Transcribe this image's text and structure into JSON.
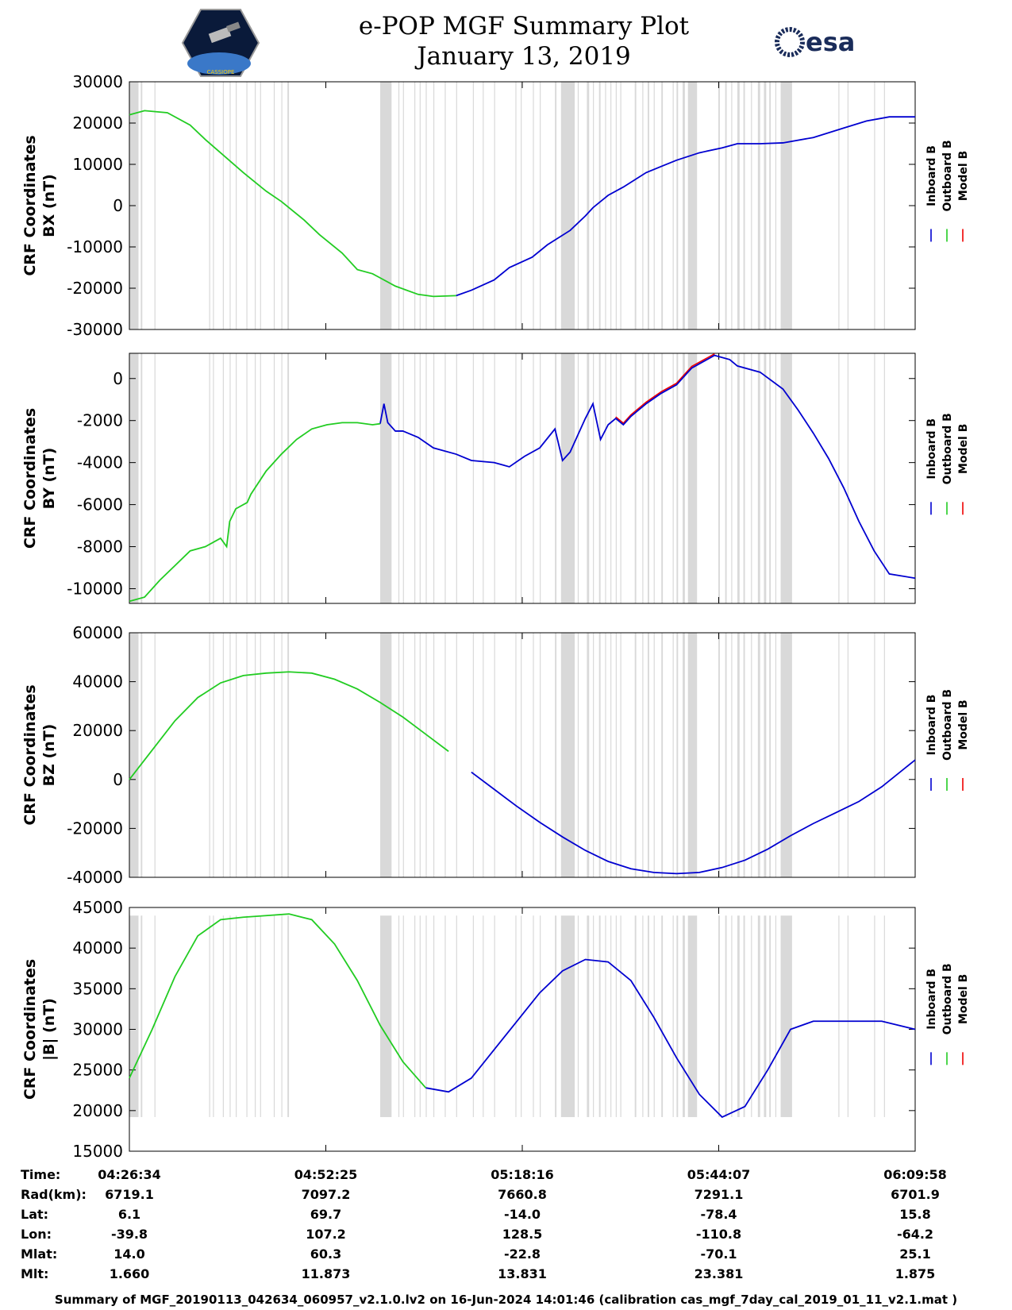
{
  "header": {
    "title": "e-POP MGF Summary Plot",
    "date": "January 13, 2019",
    "logo_left": "cassiope-mission-logo",
    "logo_left_text": "CASSIOPE",
    "logo_right": "esa-logo",
    "logo_right_text": "esa"
  },
  "colors": {
    "inboard": "#0000d0",
    "outboard": "#22cc22",
    "model": "#ee0000",
    "gap": "#d9d9d9"
  },
  "legend": [
    "Inboard B",
    "Outboard B",
    "Model B"
  ],
  "chart_data": [
    {
      "type": "line",
      "name": "bx",
      "ylabel_line1": "CRF Coordinates",
      "ylabel_line2": "BX (nT)",
      "ylim": [
        -30000,
        30000
      ],
      "yticks": [
        -30000,
        -20000,
        -10000,
        0,
        10000,
        20000,
        30000
      ],
      "ytick_labels": [
        "-30000",
        "-20000",
        "-10000",
        "0",
        "10000",
        "20000",
        "30000"
      ],
      "x_minutes": [
        0,
        2,
        5,
        8,
        10,
        12,
        15,
        18,
        20,
        23,
        25,
        28,
        30,
        32,
        33,
        35,
        38,
        40,
        43,
        45,
        48,
        50,
        53,
        55,
        58,
        60,
        61,
        63,
        65,
        68,
        70,
        72,
        75,
        78,
        80,
        83,
        86,
        90,
        94,
        97,
        100,
        103.4
      ],
      "values": [
        22000,
        23000,
        22500,
        19500,
        16000,
        12800,
        8000,
        3500,
        1000,
        -3500,
        -7000,
        -11500,
        -15500,
        -16500,
        -17500,
        -19500,
        -21500,
        -22000,
        -21800,
        -20500,
        -18000,
        -15000,
        -12500,
        -9500,
        -6000,
        -2500,
        -500,
        2500,
        4500,
        8000,
        9500,
        11000,
        12800,
        14000,
        15000,
        15000,
        15200,
        16500,
        18800,
        20500,
        21500,
        21500
      ],
      "outboard_until_minute": 43
    },
    {
      "type": "line",
      "name": "by",
      "ylabel_line1": "CRF Coordinates",
      "ylabel_line2": "BY (nT)",
      "ylim": [
        -10700,
        1200
      ],
      "yticks": [
        -10000,
        -8000,
        -6000,
        -4000,
        -2000,
        0
      ],
      "ytick_labels": [
        "-10000",
        "-8000",
        "-6000",
        "-4000",
        "-2000",
        "0"
      ],
      "x_minutes": [
        0,
        2,
        4,
        6,
        8,
        10,
        12,
        12.8,
        13.2,
        14,
        15.5,
        16,
        18,
        20,
        22,
        24,
        26,
        28,
        30,
        32,
        33,
        33.5,
        34,
        35,
        36,
        38,
        40,
        43,
        45,
        48,
        50,
        52,
        54,
        56,
        57,
        58,
        60,
        61,
        62,
        63,
        64,
        65,
        66,
        67,
        68,
        70,
        72,
        74,
        75.5,
        77,
        79,
        80,
        83,
        86,
        88,
        90,
        92,
        94,
        96,
        98,
        100,
        103.4
      ],
      "values": [
        -10600,
        -10400,
        -9600,
        -8900,
        -8200,
        -8000,
        -7600,
        -8000,
        -6800,
        -6200,
        -5900,
        -5500,
        -4400,
        -3600,
        -2900,
        -2400,
        -2200,
        -2100,
        -2100,
        -2200,
        -2150,
        -1200,
        -2100,
        -2500,
        -2500,
        -2800,
        -3300,
        -3600,
        -3900,
        -4000,
        -4200,
        -3700,
        -3300,
        -2400,
        -3900,
        -3500,
        -1900,
        -1200,
        -2900,
        -2200,
        -1900,
        -2200,
        -1800,
        -1500,
        -1200,
        -700,
        -300,
        500,
        800,
        1100,
        900,
        600,
        300,
        -500,
        -1500,
        -2600,
        -3800,
        -5200,
        -6800,
        -8200,
        -9300,
        -9500
      ],
      "outboard_until_minute": 33
    },
    {
      "type": "line",
      "name": "bz",
      "ylabel_line1": "CRF Coordinates",
      "ylabel_line2": "BZ (nT)",
      "ylim": [
        -40000,
        60000
      ],
      "yticks": [
        -40000,
        -20000,
        0,
        20000,
        40000,
        60000
      ],
      "ytick_labels": [
        "-40000",
        "-20000",
        "0",
        "20000",
        "40000",
        "60000"
      ],
      "x_minutes": [
        0,
        3,
        6,
        9,
        12,
        15,
        18,
        21,
        24,
        27,
        30,
        33,
        36,
        39,
        42,
        45,
        48,
        51,
        54,
        57,
        60,
        63,
        66,
        69,
        72,
        75,
        78,
        81,
        84,
        87,
        90,
        93,
        96,
        99,
        103.4
      ],
      "values": [
        0,
        12000,
        24000,
        33500,
        39500,
        42500,
        43500,
        44000,
        43500,
        41000,
        37000,
        31500,
        25500,
        18500,
        11500,
        3000,
        -4000,
        -11000,
        -17500,
        -23500,
        -29000,
        -33500,
        -36500,
        -38000,
        -38500,
        -38000,
        -36000,
        -33000,
        -28500,
        -23000,
        -18000,
        -13500,
        -9000,
        -3000,
        8000
      ],
      "outboard_until_minute": 43
    },
    {
      "type": "line",
      "name": "bmag",
      "ylabel_line1": "CRF Coordinates",
      "ylabel_line2": "|B| (nT)",
      "ylim": [
        15000,
        45000
      ],
      "yticks": [
        15000,
        20000,
        25000,
        30000,
        35000,
        40000,
        45000
      ],
      "ytick_labels": [
        "15000",
        "20000",
        "25000",
        "30000",
        "35000",
        "40000",
        "45000"
      ],
      "x_minutes": [
        0,
        3,
        6,
        9,
        12,
        15,
        18,
        21,
        24,
        27,
        30,
        33,
        36,
        39,
        42,
        45,
        48,
        51,
        54,
        57,
        60,
        63,
        66,
        69,
        72,
        75,
        78,
        81,
        84,
        87,
        90,
        93,
        96,
        99,
        103.4
      ],
      "values": [
        24000,
        30000,
        36500,
        41500,
        43500,
        43800,
        44000,
        44200,
        43500,
        40500,
        36000,
        30500,
        26000,
        22800,
        22300,
        24000,
        27500,
        31000,
        34500,
        37200,
        38600,
        38300,
        36000,
        31500,
        26500,
        22000,
        19200,
        20500,
        25000,
        30000,
        31000,
        31000,
        31000,
        31000,
        30000
      ],
      "outboard_until_minute": 39
    }
  ],
  "data_gaps_minutes": [
    [
      0,
      1.2
    ],
    [
      1.5,
      1.7
    ],
    [
      3.3,
      3.4
    ],
    [
      10.5,
      10.6
    ],
    [
      11,
      11.1
    ],
    [
      12.3,
      12.4
    ],
    [
      13.2,
      13.3
    ],
    [
      14,
      14.1
    ],
    [
      15.4,
      15.5
    ],
    [
      16.5,
      16.6
    ],
    [
      17.2,
      17.3
    ],
    [
      19,
      19.1
    ],
    [
      20,
      20.1
    ],
    [
      20.8,
      21
    ],
    [
      33,
      34.5
    ],
    [
      35.4,
      35.5
    ],
    [
      36,
      36.1
    ],
    [
      37.5,
      37.6
    ],
    [
      38.2,
      38.3
    ],
    [
      39,
      39.1
    ],
    [
      40,
      40.1
    ],
    [
      41.5,
      41.6
    ],
    [
      43,
      43.1
    ],
    [
      45.2,
      45.3
    ],
    [
      46.5,
      46.6
    ],
    [
      48,
      48.1
    ],
    [
      50.8,
      50.9
    ],
    [
      51.5,
      51.6
    ],
    [
      53.1,
      53.2
    ],
    [
      54,
      54.1
    ],
    [
      56,
      56.2
    ],
    [
      56.8,
      58.6
    ],
    [
      59,
      59.1
    ],
    [
      60.2,
      60.5
    ],
    [
      61,
      61.1
    ],
    [
      61.8,
      62
    ],
    [
      62.6,
      62.7
    ],
    [
      63.3,
      63.4
    ],
    [
      64,
      64.1
    ],
    [
      64.6,
      64.7
    ],
    [
      66.5,
      66.7
    ],
    [
      67.5,
      67.6
    ],
    [
      68.2,
      68.4
    ],
    [
      69,
      69.1
    ],
    [
      70,
      70.2
    ],
    [
      71.5,
      71.6
    ],
    [
      72,
      72.2
    ],
    [
      72.8,
      73.1
    ],
    [
      73.5,
      74.7
    ],
    [
      77.5,
      77.7
    ],
    [
      78.4,
      78.6
    ],
    [
      79.2,
      79.3
    ],
    [
      80,
      80.3
    ],
    [
      80.8,
      81
    ],
    [
      81.8,
      81.9
    ],
    [
      82.7,
      83
    ],
    [
      83.5,
      83.8
    ],
    [
      84.2,
      84.4
    ],
    [
      85,
      85.1
    ],
    [
      85.7,
      87.2
    ],
    [
      93.3,
      93.4
    ],
    [
      94.5,
      94.6
    ],
    [
      98,
      98.1
    ],
    [
      99.3,
      99.4
    ]
  ],
  "x_axis": {
    "total_minutes": 103.4,
    "tick_minutes": [
      0,
      25.85,
      51.7,
      77.55,
      103.4
    ]
  },
  "footer": {
    "labels": [
      "Time:",
      "Rad(km):",
      "Lat:",
      "Lon:",
      "Mlat:",
      "Mlt:"
    ],
    "columns": [
      [
        "04:26:34",
        "6719.1",
        "6.1",
        "-39.8",
        "14.0",
        "1.660"
      ],
      [
        "04:52:25",
        "7097.2",
        "69.7",
        "107.2",
        "60.3",
        "11.873"
      ],
      [
        "05:18:16",
        "7660.8",
        "-14.0",
        "128.5",
        "-22.8",
        "13.831"
      ],
      [
        "05:44:07",
        "7291.1",
        "-78.4",
        "-110.8",
        "-70.1",
        "23.381"
      ],
      [
        "06:09:58",
        "6701.9",
        "15.8",
        "-64.2",
        "25.1",
        "1.875"
      ]
    ],
    "note": "Summary of MGF_20190113_042634_060957_v2.1.0.lv2 on 16-Jun-2024 14:01:46 (calibration cas_mgf_7day_cal_2019_01_11_v2.1.mat )"
  }
}
